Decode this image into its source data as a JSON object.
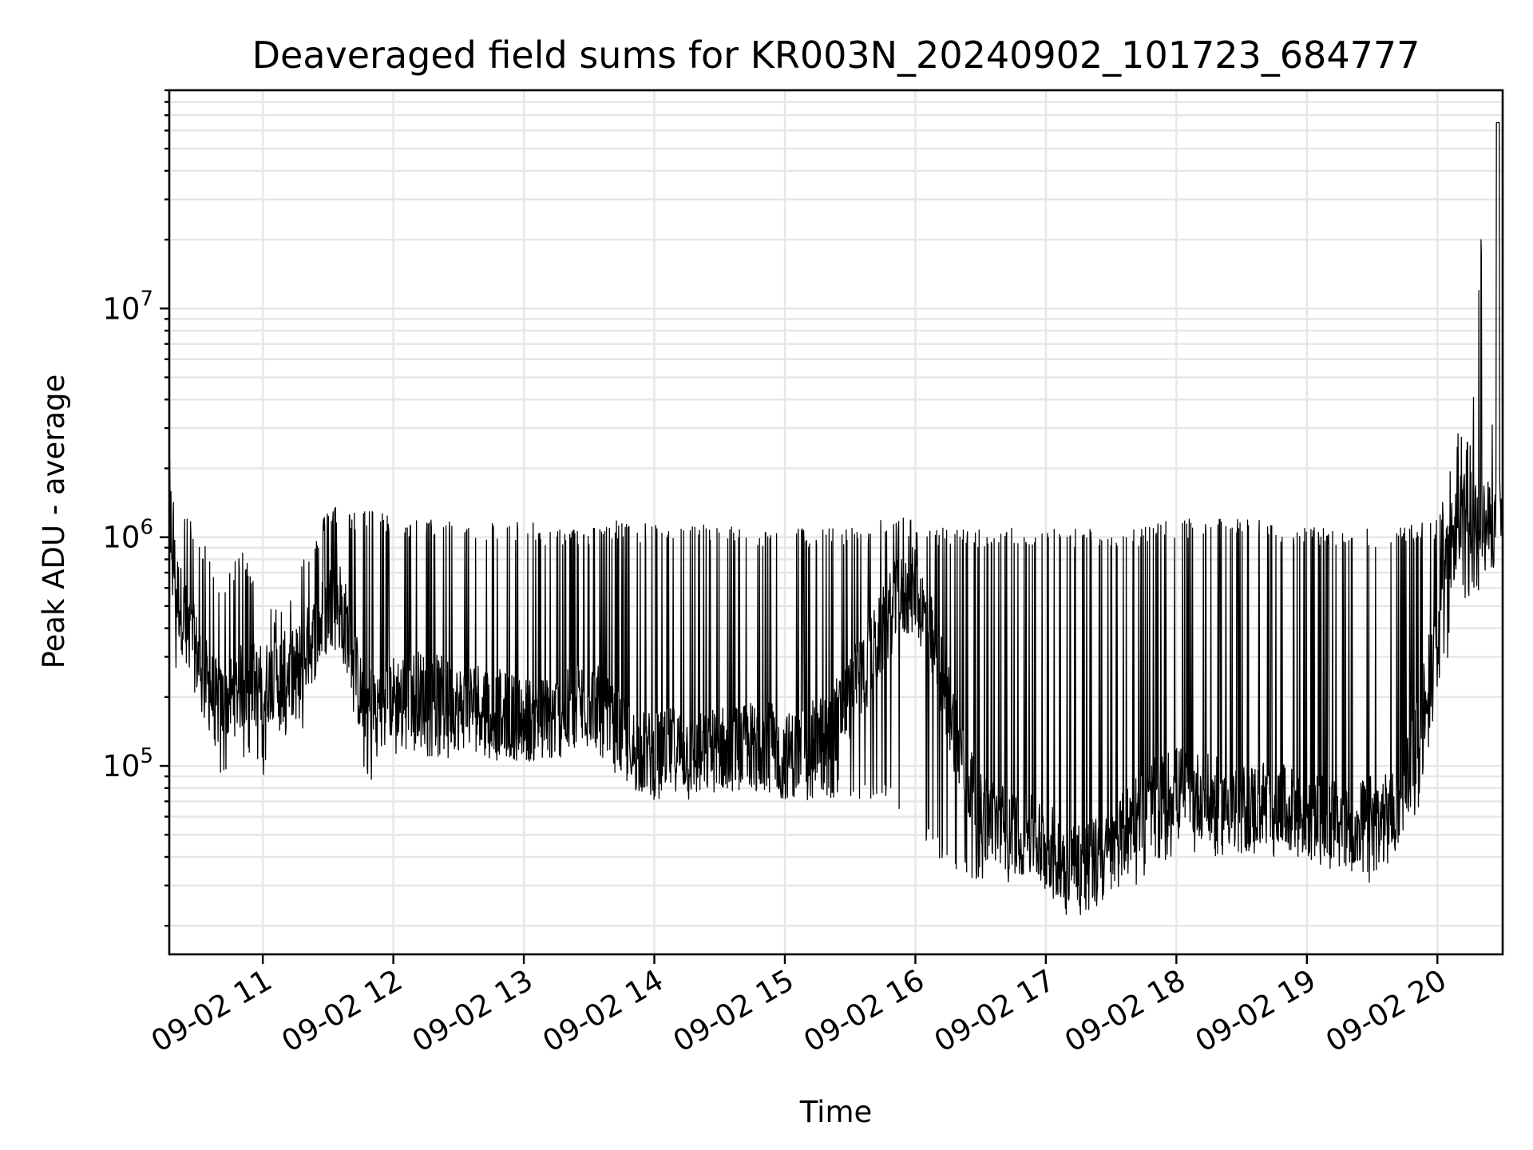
{
  "chart_data": {
    "type": "line",
    "title": "Deaveraged field sums for KR003N_20240902_101723_684777",
    "xlabel": "Time",
    "ylabel": "Peak ADU - average",
    "yscale": "log",
    "ylim": [
      15000,
      90000000
    ],
    "xlim": [
      "09-02 10:17",
      "09-02 20:30"
    ],
    "grid": "on (major and minor)",
    "line_color": "#000000",
    "x_ticks": [
      "09-02 11",
      "09-02 12",
      "09-02 13",
      "09-02 14",
      "09-02 15",
      "09-02 16",
      "09-02 17",
      "09-02 18",
      "09-02 19",
      "09-02 20"
    ],
    "y_ticks": [
      100000,
      1000000,
      10000000
    ],
    "y_tick_labels": [
      {
        "base": "10",
        "exp": "5"
      },
      {
        "base": "10",
        "exp": "6"
      },
      {
        "base": "10",
        "exp": "7"
      }
    ],
    "series": [
      {
        "x": [
          "10:17",
          "10:20",
          "10:25",
          "10:30",
          "10:35",
          "10:40",
          "10:45",
          "10:50",
          "10:55",
          "11:00",
          "11:05",
          "11:10",
          "11:15",
          "11:20",
          "11:25",
          "11:30",
          "11:35",
          "11:40",
          "11:45",
          "11:50",
          "11:55",
          "12:00",
          "12:10",
          "12:20",
          "12:30",
          "12:40",
          "12:50",
          "13:00",
          "13:10",
          "13:20",
          "13:30",
          "13:40",
          "13:50",
          "14:00",
          "14:10",
          "14:20",
          "14:30",
          "14:40",
          "14:50",
          "15:00",
          "15:10",
          "15:20",
          "15:30",
          "15:40",
          "15:50",
          "16:00",
          "16:10",
          "16:20",
          "16:30",
          "16:40",
          "16:50",
          "17:00",
          "17:10",
          "17:20",
          "17:30",
          "17:40",
          "17:50",
          "18:00",
          "18:10",
          "18:20",
          "18:30",
          "18:40",
          "18:50",
          "19:00",
          "19:10",
          "19:20",
          "19:30",
          "19:40",
          "19:50",
          "20:00",
          "20:05",
          "20:10",
          "20:15",
          "20:20",
          "20:25",
          "20:28",
          "20:30"
        ],
        "baseline": [
          1500000,
          600000,
          400000,
          300000,
          220000,
          180000,
          200000,
          220000,
          230000,
          220000,
          250000,
          250000,
          260000,
          320000,
          380000,
          500000,
          550000,
          350000,
          200000,
          180000,
          190000,
          200000,
          210000,
          200000,
          180000,
          190000,
          170000,
          160000,
          160000,
          170000,
          200000,
          150000,
          120000,
          110000,
          120000,
          110000,
          120000,
          120000,
          130000,
          110000,
          120000,
          140000,
          200000,
          300000,
          500000,
          600000,
          300000,
          120000,
          60000,
          55000,
          50000,
          45000,
          40000,
          38000,
          40000,
          60000,
          70000,
          80000,
          75000,
          70000,
          65000,
          70000,
          65000,
          60000,
          60000,
          55000,
          60000,
          60000,
          120000,
          400000,
          800000,
          1200000,
          1300000,
          1200000,
          1100000,
          1200000,
          1200000
        ],
        "peaks": [
          2200000,
          1300000,
          1300000,
          1000000,
          900000,
          600000,
          700000,
          900000,
          750000,
          700000,
          500000,
          500000,
          700000,
          900000,
          1000000,
          1400000,
          1400000,
          1300000,
          1300000,
          1400000,
          1300000,
          1200000,
          1200000,
          1200000,
          1200000,
          1200000,
          1150000,
          1200000,
          1100000,
          1100000,
          1100000,
          1200000,
          1150000,
          1150000,
          1100000,
          1150000,
          1150000,
          1100000,
          1100000,
          1100000,
          1100000,
          1100000,
          1100000,
          1150000,
          1250000,
          1200000,
          1100000,
          1100000,
          1100000,
          1100000,
          1100000,
          1100000,
          1100000,
          1100000,
          1100000,
          1100000,
          1150000,
          1200000,
          1200000,
          1200000,
          1200000,
          1200000,
          1150000,
          1100000,
          1100000,
          1100000,
          1100000,
          1100000,
          1150000,
          1200000,
          1800000,
          3000000,
          2500000,
          20000000,
          2500000,
          70000000,
          1100000
        ],
        "troughs": [
          900000,
          250000,
          250000,
          200000,
          120000,
          90000,
          100000,
          110000,
          100000,
          90000,
          120000,
          130000,
          150000,
          120000,
          150000,
          300000,
          300000,
          250000,
          80000,
          80000,
          100000,
          110000,
          110000,
          110000,
          100000,
          110000,
          100000,
          110000,
          100000,
          110000,
          120000,
          100000,
          80000,
          70000,
          70000,
          70000,
          70000,
          70000,
          70000,
          70000,
          70000,
          70000,
          70000,
          70000,
          70000,
          50000,
          40000,
          32000,
          30000,
          30000,
          32000,
          28000,
          22000,
          22000,
          25000,
          30000,
          32000,
          40000,
          40000,
          40000,
          40000,
          40000,
          40000,
          35000,
          35000,
          32000,
          30000,
          40000,
          50000,
          200000,
          300000,
          500000,
          500000,
          600000,
          650000,
          700000,
          800000
        ]
      }
    ]
  }
}
